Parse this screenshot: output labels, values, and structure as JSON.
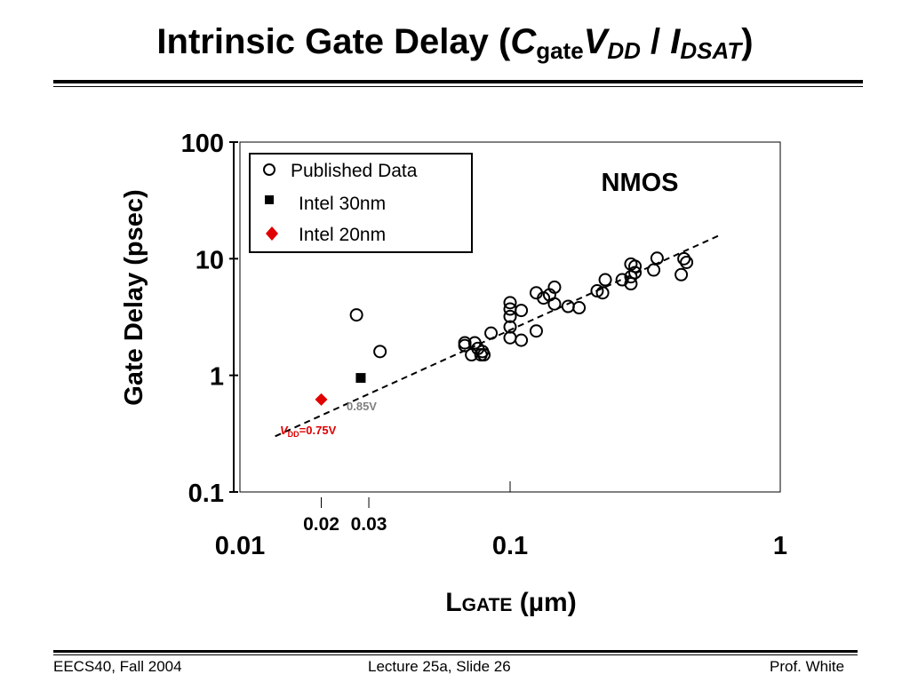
{
  "slide": {
    "title_prefix": "Intrinsic Gate Delay (",
    "title_c": "C",
    "title_c_sub": "gate",
    "title_v": "V",
    "title_v_sub": "DD",
    "title_slash": " / ",
    "title_i": "I",
    "title_i_sub": "DSAT",
    "title_suffix": ")"
  },
  "footer": {
    "left": "EECS40, Fall 2004",
    "center": "Lecture 25a, Slide 26",
    "right": "Prof. White"
  },
  "chart_data": {
    "type": "scatter",
    "title": "NMOS",
    "xlabel_main": "L",
    "xlabel_sub": "GATE",
    "xlabel_unit": " (µm)",
    "ylabel": "Gate Delay (psec)",
    "x_scale": "log",
    "y_scale": "log",
    "xlim": [
      0.01,
      1
    ],
    "ylim": [
      0.1,
      100
    ],
    "x_ticks": [
      {
        "value": 0.01,
        "label": "0.01"
      },
      {
        "value": 0.1,
        "label": "0.1"
      },
      {
        "value": 1,
        "label": "1"
      }
    ],
    "x_minor_ticks": [
      {
        "value": 0.02,
        "label": "0.02"
      },
      {
        "value": 0.03,
        "label": "0.03"
      }
    ],
    "y_ticks": [
      {
        "value": 0.1,
        "label": "0.1"
      },
      {
        "value": 1,
        "label": "1"
      },
      {
        "value": 10,
        "label": "10"
      },
      {
        "value": 100,
        "label": "100"
      }
    ],
    "legend_position": "top-left",
    "series": [
      {
        "name": "Published Data",
        "marker": "open-circle",
        "color": "#000000",
        "points": [
          [
            0.027,
            3.3
          ],
          [
            0.033,
            1.6
          ],
          [
            0.068,
            1.9
          ],
          [
            0.068,
            1.8
          ],
          [
            0.072,
            1.5
          ],
          [
            0.074,
            1.9
          ],
          [
            0.076,
            1.7
          ],
          [
            0.078,
            1.5
          ],
          [
            0.079,
            1.6
          ],
          [
            0.08,
            1.5
          ],
          [
            0.085,
            2.3
          ],
          [
            0.1,
            2.6
          ],
          [
            0.1,
            2.1
          ],
          [
            0.1,
            3.2
          ],
          [
            0.1,
            3.7
          ],
          [
            0.1,
            4.2
          ],
          [
            0.11,
            2.0
          ],
          [
            0.11,
            3.6
          ],
          [
            0.125,
            2.4
          ],
          [
            0.125,
            5.1
          ],
          [
            0.133,
            4.6
          ],
          [
            0.14,
            4.9
          ],
          [
            0.146,
            4.1
          ],
          [
            0.146,
            5.7
          ],
          [
            0.164,
            3.9
          ],
          [
            0.18,
            3.8
          ],
          [
            0.21,
            5.3
          ],
          [
            0.22,
            5.1
          ],
          [
            0.225,
            6.6
          ],
          [
            0.26,
            6.6
          ],
          [
            0.28,
            6.1
          ],
          [
            0.28,
            7.0
          ],
          [
            0.29,
            7.6
          ],
          [
            0.29,
            8.6
          ],
          [
            0.28,
            9.0
          ],
          [
            0.34,
            8.0
          ],
          [
            0.35,
            10.1
          ],
          [
            0.43,
            7.3
          ],
          [
            0.44,
            10.0
          ],
          [
            0.45,
            9.3
          ]
        ]
      },
      {
        "name": "Intel 30nm",
        "marker": "filled-square",
        "color": "#000000",
        "points": [
          [
            0.028,
            0.95
          ]
        ]
      },
      {
        "name": "Intel 20nm",
        "marker": "filled-diamond",
        "color": "#e00000",
        "points": [
          [
            0.02,
            0.62
          ]
        ]
      }
    ],
    "trendline": {
      "style": "dashed",
      "points": [
        [
          0.0135,
          0.3
        ],
        [
          0.6,
          16
        ]
      ]
    },
    "annotations": [
      {
        "id": "vdd085",
        "text": "0.85V",
        "color": "#808080"
      },
      {
        "id": "vdd075",
        "prefix": "V",
        "sub": "DD",
        "text": "=0.75V",
        "color": "#e00000"
      }
    ]
  }
}
